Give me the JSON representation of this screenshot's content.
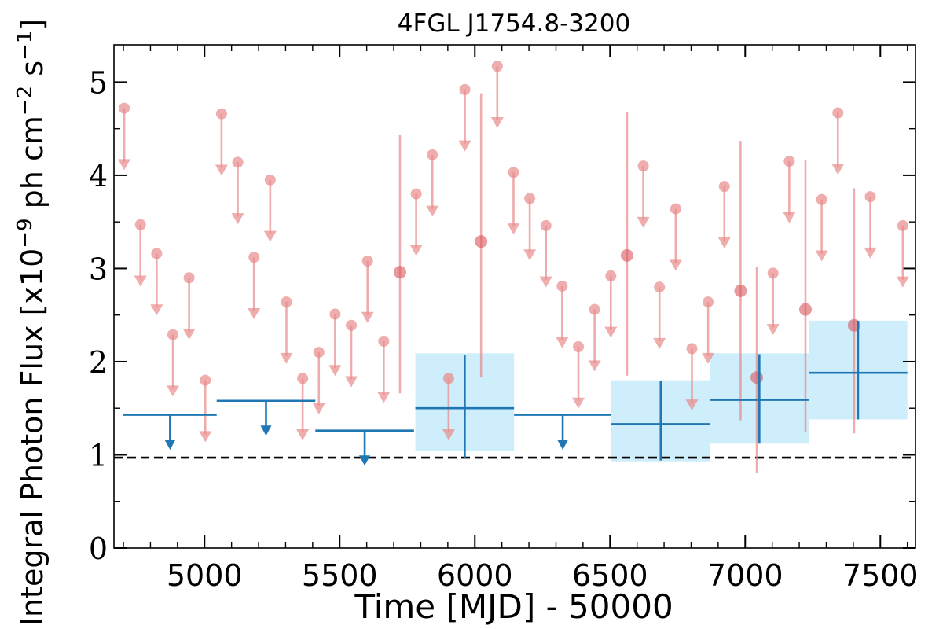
{
  "chart_data": {
    "type": "scatter",
    "title": "4FGL J1754.8-3200",
    "xlabel": "Time [MJD] - 50000",
    "ylabel": "Integral Photon Flux [x10",
    "ylabel_exp1": "−9",
    "ylabel_mid": " ph cm",
    "ylabel_exp2": "−2",
    "ylabel_mid2": " s",
    "ylabel_exp3": "−1",
    "ylabel_end": "]",
    "xlim": [
      4665,
      7630
    ],
    "ylim": [
      0,
      5.4
    ],
    "xticks": [
      5000,
      5500,
      6000,
      6500,
      7000,
      7500
    ],
    "xtick_labels": [
      "5000",
      "5500",
      "6000",
      "6500",
      "7000",
      "7500"
    ],
    "yticks": [
      0,
      1,
      2,
      3,
      4,
      5
    ],
    "ytick_labels": [
      "0",
      "1",
      "2",
      "3",
      "4",
      "5"
    ],
    "reference_line": {
      "y": 0.97,
      "style": "dashed",
      "color": "#000000"
    },
    "colors": {
      "short_bins": "#e88a8a",
      "long_bins": "#1f77b4",
      "long_box": "#cfeefc"
    },
    "short_bins": {
      "bin_width_days": 60,
      "upper_limits": [
        {
          "x": 4703,
          "y": 4.72
        },
        {
          "x": 4763,
          "y": 3.47
        },
        {
          "x": 4823,
          "y": 3.16
        },
        {
          "x": 4883,
          "y": 2.29
        },
        {
          "x": 4943,
          "y": 2.9
        },
        {
          "x": 5003,
          "y": 1.8
        },
        {
          "x": 5063,
          "y": 4.66
        },
        {
          "x": 5123,
          "y": 4.14
        },
        {
          "x": 5183,
          "y": 3.12
        },
        {
          "x": 5243,
          "y": 3.95
        },
        {
          "x": 5303,
          "y": 2.64
        },
        {
          "x": 5363,
          "y": 1.82
        },
        {
          "x": 5423,
          "y": 2.1
        },
        {
          "x": 5483,
          "y": 2.51
        },
        {
          "x": 5543,
          "y": 2.39
        },
        {
          "x": 5603,
          "y": 3.08
        },
        {
          "x": 5663,
          "y": 2.22
        },
        {
          "x": 5783,
          "y": 3.8
        },
        {
          "x": 5843,
          "y": 4.22
        },
        {
          "x": 5903,
          "y": 1.82
        },
        {
          "x": 5963,
          "y": 4.92
        },
        {
          "x": 6083,
          "y": 5.17
        },
        {
          "x": 6143,
          "y": 4.03
        },
        {
          "x": 6203,
          "y": 3.75
        },
        {
          "x": 6263,
          "y": 3.46
        },
        {
          "x": 6323,
          "y": 2.81
        },
        {
          "x": 6383,
          "y": 2.16
        },
        {
          "x": 6443,
          "y": 2.56
        },
        {
          "x": 6503,
          "y": 2.92
        },
        {
          "x": 6623,
          "y": 4.1
        },
        {
          "x": 6683,
          "y": 2.8
        },
        {
          "x": 6743,
          "y": 3.64
        },
        {
          "x": 6803,
          "y": 2.14
        },
        {
          "x": 6863,
          "y": 2.64
        },
        {
          "x": 6923,
          "y": 3.88
        },
        {
          "x": 7103,
          "y": 2.95
        },
        {
          "x": 7163,
          "y": 4.15
        },
        {
          "x": 7283,
          "y": 3.74
        },
        {
          "x": 7343,
          "y": 4.67
        },
        {
          "x": 7463,
          "y": 3.77
        },
        {
          "x": 7583,
          "y": 3.46
        }
      ],
      "detections": [
        {
          "x": 5723,
          "y": 2.96,
          "ylow": 1.66,
          "yhigh": 4.43
        },
        {
          "x": 6023,
          "y": 3.29,
          "ylow": 1.83,
          "yhigh": 4.88
        },
        {
          "x": 6563,
          "y": 3.14,
          "ylow": 1.85,
          "yhigh": 4.68
        },
        {
          "x": 6983,
          "y": 2.76,
          "ylow": 1.37,
          "yhigh": 4.37
        },
        {
          "x": 7043,
          "y": 1.83,
          "ylow": 0.81,
          "yhigh": 3.02
        },
        {
          "x": 7223,
          "y": 2.56,
          "ylow": 1.24,
          "yhigh": 4.16
        },
        {
          "x": 7403,
          "y": 2.39,
          "ylow": 1.23,
          "yhigh": 3.86
        }
      ]
    },
    "long_bins": {
      "upper_limits": [
        {
          "x0": 4700,
          "x1": 5045,
          "y": 1.43
        },
        {
          "x0": 5045,
          "x1": 5410,
          "y": 1.58
        },
        {
          "x0": 5410,
          "x1": 5775,
          "y": 1.26
        },
        {
          "x0": 6145,
          "x1": 6505,
          "y": 1.43
        }
      ],
      "detections": [
        {
          "x0": 5780,
          "x1": 6145,
          "y": 1.5,
          "ylow": 0.97,
          "yhigh": 2.07,
          "box_low": 1.04,
          "box_high": 2.09
        },
        {
          "x0": 6505,
          "x1": 6870,
          "y": 1.33,
          "ylow": 0.94,
          "yhigh": 1.79,
          "box_low": 0.93,
          "box_high": 1.8
        },
        {
          "x0": 6870,
          "x1": 7235,
          "y": 1.59,
          "ylow": 1.12,
          "yhigh": 2.08,
          "box_low": 1.12,
          "box_high": 2.09
        },
        {
          "x0": 7235,
          "x1": 7600,
          "y": 1.88,
          "ylow": 1.38,
          "yhigh": 2.44,
          "box_low": 1.38,
          "box_high": 2.44
        }
      ]
    }
  }
}
